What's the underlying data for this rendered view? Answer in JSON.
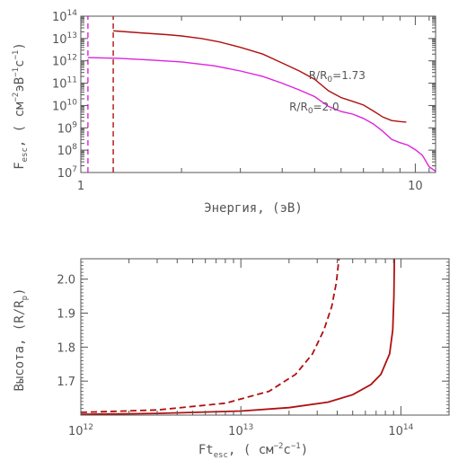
{
  "chart_data": [
    {
      "type": "line",
      "xlabel": "Энергия, (эВ)",
      "ylabel_main": "F",
      "ylabel_sub": "esc",
      "ylabel_rest": ", ( см",
      "ylabel_exp1": "−2",
      "ylabel_unit2": "эВ",
      "ylabel_exp2": "−1",
      "ylabel_unit3": "с",
      "ylabel_exp3": "−1",
      "ylabel_close": ")",
      "x_scale": "log",
      "y_scale": "log",
      "xlim": [
        1.0,
        11.5
      ],
      "ylim": [
        10000000.0,
        100000000000000.0
      ],
      "x_ticks": [
        {
          "label": "1",
          "value": 1
        },
        {
          "label": "10",
          "value": 10
        }
      ],
      "y_ticks": [
        {
          "base": "10",
          "exp": "7",
          "value": 10000000.0
        },
        {
          "base": "10",
          "exp": "8",
          "value": 100000000.0
        },
        {
          "base": "10",
          "exp": "9",
          "value": 1000000000.0
        },
        {
          "base": "10",
          "exp": "10",
          "value": 10000000000.0
        },
        {
          "base": "10",
          "exp": "11",
          "value": 100000000000.0
        },
        {
          "base": "10",
          "exp": "12",
          "value": 1000000000000.0
        },
        {
          "base": "10",
          "exp": "13",
          "value": 10000000000000.0
        },
        {
          "base": "10",
          "exp": "14",
          "value": 100000000000000.0
        }
      ],
      "series": [
        {
          "color": "#b01010",
          "label_main": "R/R",
          "label_sub": "0",
          "label_rest": "=1.73",
          "label_at": {
            "x": 4.8,
            "y": 150000000000.0
          },
          "cutoff_x": 1.25,
          "x": [
            1.25,
            1.5,
            1.8,
            2.0,
            2.3,
            2.6,
            3.0,
            3.5,
            4.0,
            4.5,
            5.0,
            5.5,
            6.0,
            6.5,
            7.0,
            7.5,
            8.0,
            8.5,
            9.0,
            9.4
          ],
          "y": [
            22000000000000.0,
            18000000000000.0,
            15000000000000.0,
            13000000000000.0,
            10000000000000.0,
            7000000000000.0,
            4000000000000.0,
            2000000000000.0,
            800000000000.0,
            350000000000.0,
            150000000000.0,
            60000000000.0,
            25000000000.0,
            13000000000.0,
            8000000000.0,
            5000000000.0,
            3500000000.0,
            2800000000.0,
            2200000000.0,
            1600000000.0
          ]
        },
        {
          "color": "#dd22dd",
          "label_main": "R/R",
          "label_sub": "0",
          "label_rest": "=2.0",
          "label_at": {
            "x": 4.2,
            "y": 6000000000.0
          },
          "cutoff_x": 1.05,
          "x": [
            1.05,
            1.3,
            1.6,
            2.0,
            2.5,
            3.0,
            3.5,
            4.0,
            4.5,
            5.0,
            5.5,
            6.0,
            6.5,
            7.0,
            7.5,
            8.0,
            8.5,
            9.0,
            9.5,
            10.0,
            10.5,
            11.0,
            11.5
          ],
          "y": [
            1400000000000.0,
            1300000000000.0,
            1100000000000.0,
            900000000000.0,
            600000000000.0,
            350000000000.0,
            200000000000.0,
            100000000000.0,
            50000000000.0,
            25000000000.0,
            12000000000.0,
            6000000000.0,
            3500000000.0,
            2000000000.0,
            1300000000.0,
            800000000.0,
            400000000.0,
            250000000.0,
            150000000.0,
            80000000.0,
            50000000.0,
            20000000.0,
            15000000.0
          ]
        }
      ]
    },
    {
      "type": "line",
      "xlabel_main": "Ft",
      "xlabel_sub": "esc",
      "xlabel_rest": ", ( см",
      "xlabel_exp1": "−2",
      "xlabel_unit2": "с",
      "xlabel_exp2": "−1",
      "xlabel_close": ")",
      "ylabel_main": "Высота, (R/R",
      "ylabel_sub": "p",
      "ylabel_close": ")",
      "x_scale": "log",
      "y_scale": "linear",
      "xlim": [
        1000000000000.0,
        200000000000000.0
      ],
      "ylim": [
        1.6,
        2.06
      ],
      "x_ticks": [
        {
          "base": "10",
          "exp": "12",
          "value": 1000000000000.0
        },
        {
          "base": "10",
          "exp": "13",
          "value": 10000000000000.0
        },
        {
          "base": "10",
          "exp": "14",
          "value": 100000000000000.0
        }
      ],
      "y_ticks": [
        {
          "label": "1.7",
          "value": 1.7
        },
        {
          "label": "1.8",
          "value": 1.8
        },
        {
          "label": "1.9",
          "value": 1.9
        },
        {
          "label": "2.0",
          "value": 2.0
        }
      ],
      "series": [
        {
          "color": "#b01010",
          "dash": "solid",
          "x": [
            1000000000000.0,
            3000000000000.0,
            10000000000000.0,
            20000000000000.0,
            35000000000000.0,
            50000000000000.0,
            65000000000000.0,
            75000000000000.0,
            85000000000000.0,
            89000000000000.0,
            90500000000000.0,
            91000000000000.0
          ],
          "y": [
            1.602,
            1.605,
            1.612,
            1.622,
            1.638,
            1.66,
            1.69,
            1.72,
            1.78,
            1.85,
            1.95,
            2.06
          ]
        },
        {
          "color": "#b01010",
          "dash": "dashed",
          "x": [
            1000000000000.0,
            3000000000000.0,
            8000000000000.0,
            15000000000000.0,
            22000000000000.0,
            28000000000000.0,
            33000000000000.0,
            37000000000000.0,
            39500000000000.0,
            41000000000000.0
          ],
          "y": [
            1.608,
            1.615,
            1.635,
            1.67,
            1.72,
            1.78,
            1.85,
            1.92,
            1.99,
            2.06
          ]
        }
      ]
    }
  ]
}
